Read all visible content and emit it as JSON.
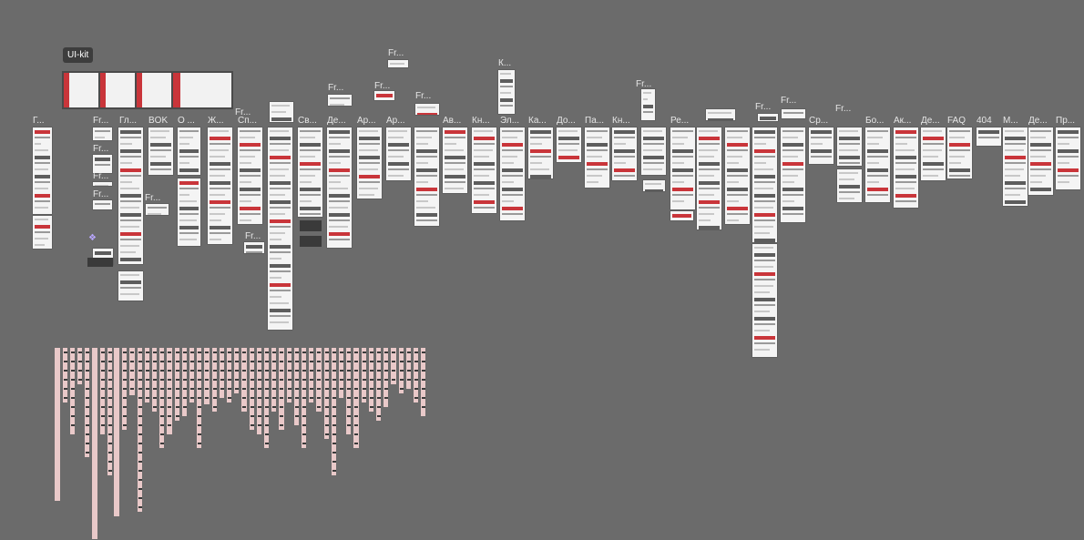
{
  "canvas": {
    "background": "#6b6b6b",
    "badge": "UI-kit",
    "labels": [
      "Г...",
      "Fr...",
      "Гл...",
      "BOK",
      "О ...",
      "Ж...",
      "Сп...",
      "Fr...",
      "Св...",
      "Де...",
      "Ар...",
      "Ар...",
      "Ав...",
      "Кн...",
      "Эл...",
      "Ка...",
      "До...",
      "Па...",
      "Кн...",
      "Ре...",
      "Fr...",
      "Fr...",
      "Fr...",
      "Ср...",
      "Бо...",
      "Ак...",
      "Де...",
      "FAQ",
      "404",
      "М...",
      "Де...",
      "Пр...",
      "К...",
      "Fr...",
      "Fr...",
      "Fr...",
      "Fr...",
      "Fr...",
      "Fr...",
      "Fr...",
      "Fr...",
      "Fr...",
      "Fr...",
      "Fr..."
    ]
  }
}
